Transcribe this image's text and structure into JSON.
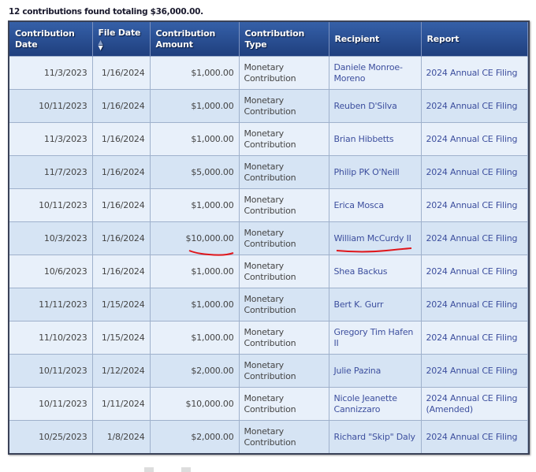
{
  "summary": "12 contributions found totaling $36,000.00.",
  "columns": [
    "Contribution Date",
    "File Date",
    "Contribution Amount",
    "Contribution Type",
    "Recipient",
    "Report"
  ],
  "sort": {
    "column": "File Date",
    "direction": "descending"
  },
  "rows": [
    [
      "11/3/2023",
      "1/16/2024",
      "$1,000.00",
      "Monetary Contribution",
      "Daniele Monroe-Moreno",
      "2024 Annual CE Filing"
    ],
    [
      "10/11/2023",
      "1/16/2024",
      "$1,000.00",
      "Monetary Contribution",
      "Reuben D'Silva",
      "2024 Annual CE Filing"
    ],
    [
      "11/3/2023",
      "1/16/2024",
      "$1,000.00",
      "Monetary Contribution",
      "Brian Hibbetts",
      "2024 Annual CE Filing"
    ],
    [
      "11/7/2023",
      "1/16/2024",
      "$5,000.00",
      "Monetary Contribution",
      "Philip PK O'Neill",
      "2024 Annual CE Filing"
    ],
    [
      "10/11/2023",
      "1/16/2024",
      "$1,000.00",
      "Monetary Contribution",
      "Erica Mosca",
      "2024 Annual CE Filing"
    ],
    [
      "10/3/2023",
      "1/16/2024",
      "$10,000.00",
      "Monetary Contribution",
      "William McCurdy II",
      "2024 Annual CE Filing"
    ],
    [
      "10/6/2023",
      "1/16/2024",
      "$1,000.00",
      "Monetary Contribution",
      "Shea Backus",
      "2024 Annual CE Filing"
    ],
    [
      "11/11/2023",
      "1/15/2024",
      "$1,000.00",
      "Monetary Contribution",
      "Bert K. Gurr",
      "2024 Annual CE Filing"
    ],
    [
      "11/10/2023",
      "1/15/2024",
      "$1,000.00",
      "Monetary Contribution",
      "Gregory Tim Hafen II",
      "2024 Annual CE Filing"
    ],
    [
      "10/11/2023",
      "1/12/2024",
      "$2,000.00",
      "Monetary Contribution",
      "Julie Pazina",
      "2024 Annual CE Filing"
    ],
    [
      "10/11/2023",
      "1/11/2024",
      "$10,000.00",
      "Monetary Contribution",
      "Nicole Jeanette Cannizzaro",
      "2024 Annual CE Filing (Amended)"
    ],
    [
      "10/25/2023",
      "1/8/2024",
      "$2,000.00",
      "Monetary Contribution",
      "Richard \"Skip\" Daly",
      "2024 Annual CE Filing"
    ]
  ],
  "annotation_color": "#e0161b"
}
